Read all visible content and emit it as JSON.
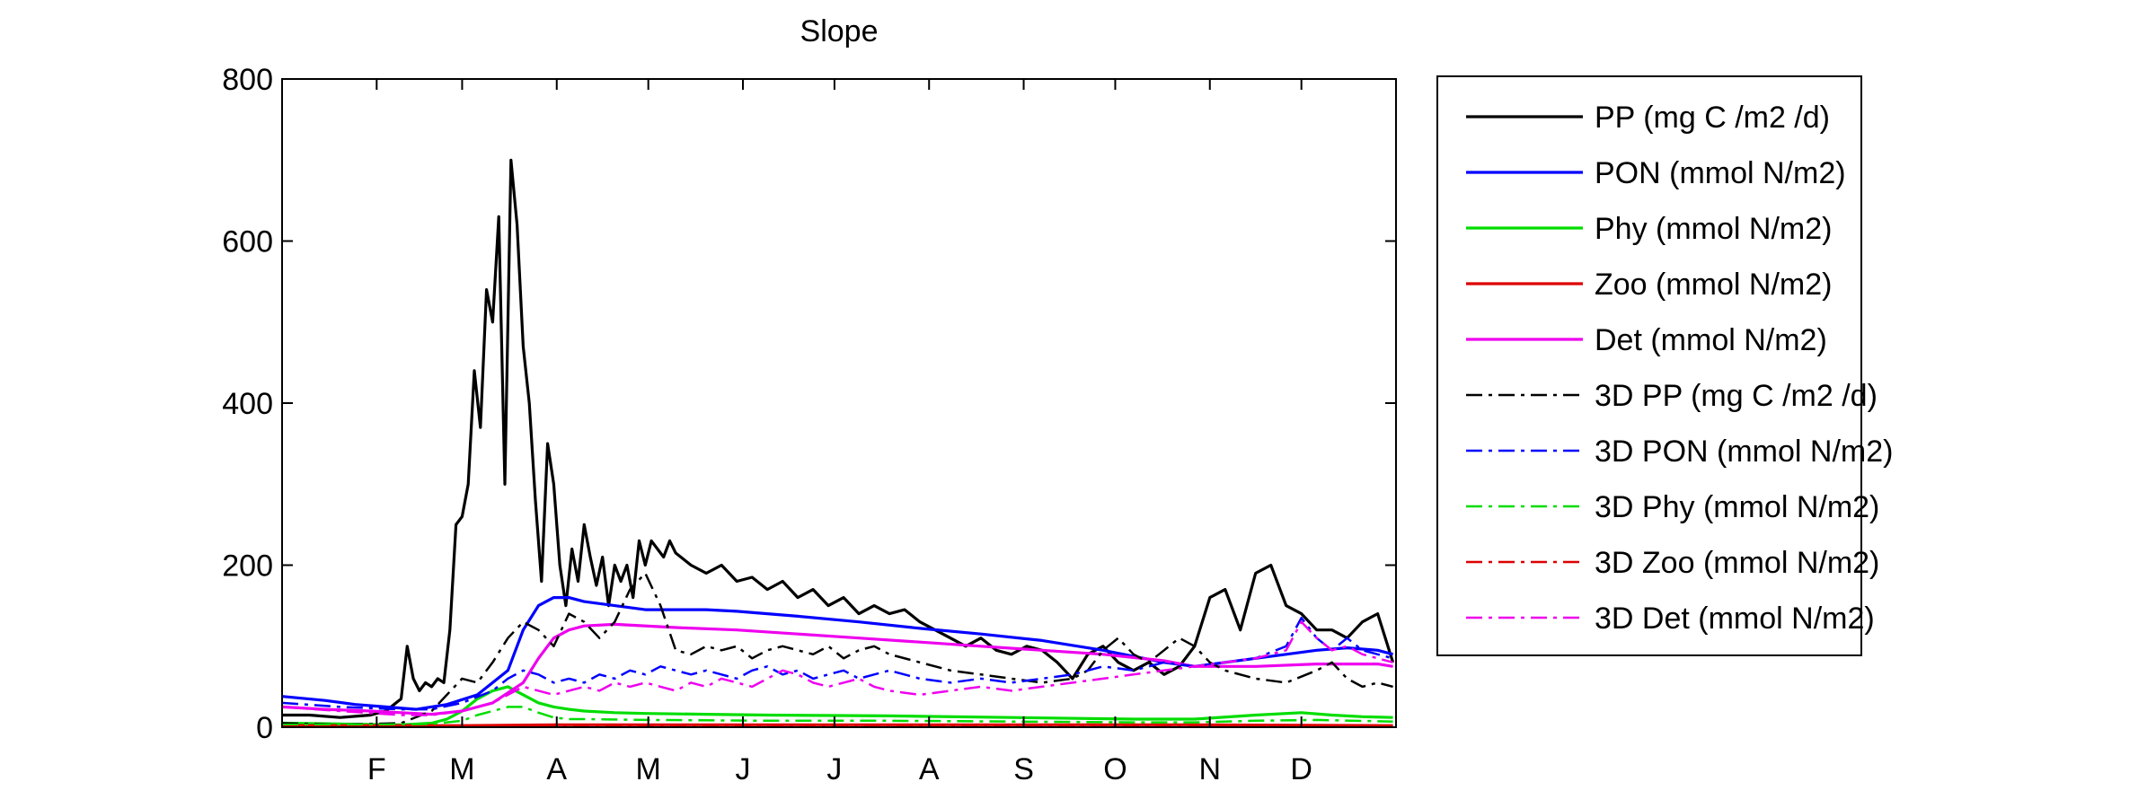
{
  "chart_data": {
    "type": "line",
    "title": "Slope",
    "xlabel": "",
    "ylabel": "",
    "xlim": [
      1,
      366
    ],
    "ylim": [
      0,
      800
    ],
    "yticks": [
      0,
      200,
      400,
      600,
      800
    ],
    "xticks": [
      {
        "label": "F",
        "day": 32
      },
      {
        "label": "M",
        "day": 60
      },
      {
        "label": "A",
        "day": 91
      },
      {
        "label": "M",
        "day": 121
      },
      {
        "label": "J",
        "day": 152
      },
      {
        "label": "J",
        "day": 182
      },
      {
        "label": "A",
        "day": 213
      },
      {
        "label": "S",
        "day": 244
      },
      {
        "label": "O",
        "day": 274
      },
      {
        "label": "N",
        "day": 305
      },
      {
        "label": "D",
        "day": 335
      }
    ],
    "grid": false,
    "legend_position": "outside-right",
    "series": [
      {
        "name": "PP (mg C /m2 /d)",
        "color": "#000000",
        "dash": "solid",
        "x": [
          1,
          10,
          20,
          30,
          35,
          40,
          42,
          44,
          46,
          48,
          50,
          52,
          54,
          56,
          58,
          60,
          62,
          64,
          66,
          68,
          70,
          72,
          74,
          76,
          78,
          80,
          82,
          84,
          86,
          88,
          90,
          92,
          94,
          96,
          98,
          100,
          102,
          104,
          106,
          108,
          110,
          112,
          114,
          116,
          118,
          120,
          122,
          124,
          126,
          128,
          130,
          135,
          140,
          145,
          150,
          155,
          160,
          165,
          170,
          175,
          180,
          185,
          190,
          195,
          200,
          205,
          210,
          215,
          220,
          225,
          230,
          235,
          240,
          245,
          250,
          255,
          260,
          265,
          270,
          275,
          280,
          285,
          290,
          295,
          300,
          305,
          310,
          315,
          320,
          325,
          330,
          335,
          340,
          345,
          350,
          355,
          360,
          365
        ],
        "y": [
          15,
          15,
          12,
          15,
          20,
          35,
          100,
          60,
          45,
          55,
          50,
          60,
          55,
          120,
          250,
          260,
          300,
          440,
          370,
          540,
          500,
          630,
          300,
          700,
          620,
          470,
          400,
          280,
          180,
          350,
          300,
          200,
          150,
          220,
          180,
          250,
          210,
          175,
          210,
          150,
          200,
          180,
          200,
          160,
          230,
          200,
          230,
          220,
          210,
          230,
          215,
          200,
          190,
          200,
          180,
          185,
          170,
          180,
          160,
          170,
          150,
          160,
          140,
          150,
          140,
          145,
          130,
          120,
          110,
          100,
          110,
          95,
          90,
          100,
          95,
          80,
          60,
          90,
          100,
          80,
          70,
          80,
          65,
          75,
          100,
          160,
          170,
          120,
          190,
          200,
          150,
          140,
          120,
          120,
          110,
          130,
          140,
          80
        ]
      },
      {
        "name": "PON (mmol N/m2)",
        "color": "#0000ff",
        "dash": "solid",
        "x": [
          1,
          15,
          25,
          35,
          45,
          55,
          65,
          75,
          80,
          85,
          90,
          95,
          100,
          110,
          120,
          130,
          140,
          150,
          170,
          190,
          210,
          230,
          250,
          270,
          290,
          300,
          320,
          340,
          350,
          360,
          365
        ],
        "y": [
          38,
          33,
          28,
          25,
          22,
          28,
          40,
          70,
          120,
          150,
          160,
          160,
          155,
          150,
          145,
          145,
          145,
          143,
          137,
          130,
          122,
          115,
          107,
          95,
          80,
          75,
          85,
          95,
          98,
          95,
          90
        ]
      },
      {
        "name": "Phy (mmol N/m2)",
        "color": "#00dd00",
        "dash": "solid",
        "x": [
          1,
          20,
          40,
          50,
          55,
          60,
          65,
          70,
          75,
          80,
          85,
          90,
          95,
          100,
          110,
          120,
          140,
          160,
          200,
          240,
          280,
          300,
          320,
          335,
          345,
          355,
          365
        ],
        "y": [
          5,
          4,
          3,
          5,
          10,
          20,
          35,
          45,
          50,
          40,
          30,
          25,
          22,
          20,
          18,
          17,
          16,
          15,
          14,
          12,
          10,
          10,
          15,
          18,
          15,
          13,
          12
        ]
      },
      {
        "name": "Zoo (mmol N/m2)",
        "color": "#dd0000",
        "dash": "solid",
        "x": [
          1,
          60,
          90,
          120,
          180,
          240,
          300,
          365
        ],
        "y": [
          2,
          2,
          3,
          3,
          3,
          3,
          3,
          2
        ]
      },
      {
        "name": "Det (mmol N/m2)",
        "color": "#ee00ee",
        "dash": "solid",
        "x": [
          1,
          15,
          30,
          40,
          50,
          60,
          70,
          80,
          85,
          90,
          95,
          100,
          110,
          130,
          150,
          170,
          190,
          210,
          230,
          250,
          270,
          290,
          300,
          320,
          340,
          360,
          365
        ],
        "y": [
          25,
          22,
          20,
          18,
          16,
          20,
          30,
          55,
          85,
          110,
          120,
          125,
          127,
          123,
          120,
          115,
          110,
          105,
          100,
          95,
          90,
          82,
          75,
          75,
          78,
          78,
          75
        ]
      },
      {
        "name": "3D PP (mg C /m2 /d)",
        "color": "#000000",
        "dash": "dashdot",
        "x": [
          1,
          20,
          40,
          50,
          55,
          60,
          65,
          70,
          75,
          80,
          85,
          90,
          95,
          100,
          105,
          110,
          115,
          120,
          125,
          130,
          135,
          140,
          145,
          150,
          155,
          160,
          165,
          170,
          175,
          180,
          185,
          190,
          195,
          200,
          210,
          220,
          230,
          240,
          250,
          260,
          265,
          270,
          275,
          280,
          285,
          290,
          295,
          300,
          305,
          310,
          320,
          330,
          340,
          345,
          350,
          355,
          360,
          365
        ],
        "y": [
          5,
          3,
          5,
          20,
          40,
          60,
          55,
          80,
          110,
          130,
          120,
          100,
          140,
          130,
          110,
          130,
          170,
          190,
          150,
          95,
          90,
          100,
          95,
          100,
          85,
          95,
          100,
          95,
          90,
          100,
          85,
          95,
          100,
          90,
          80,
          70,
          65,
          60,
          55,
          60,
          70,
          95,
          110,
          90,
          80,
          95,
          110,
          100,
          80,
          70,
          60,
          55,
          70,
          80,
          60,
          50,
          55,
          50
        ]
      },
      {
        "name": "3D PON (mmol N/m2)",
        "color": "#0000ff",
        "dash": "dashdot",
        "x": [
          1,
          20,
          40,
          50,
          60,
          70,
          75,
          80,
          85,
          90,
          95,
          100,
          105,
          110,
          115,
          120,
          125,
          130,
          135,
          140,
          145,
          150,
          155,
          160,
          165,
          170,
          175,
          180,
          185,
          190,
          195,
          200,
          210,
          220,
          230,
          240,
          250,
          260,
          270,
          280,
          290,
          300,
          310,
          320,
          330,
          335,
          340,
          345,
          350,
          355,
          360,
          365
        ],
        "y": [
          30,
          25,
          22,
          22,
          30,
          45,
          60,
          70,
          65,
          55,
          60,
          55,
          65,
          60,
          70,
          65,
          75,
          70,
          65,
          70,
          65,
          60,
          70,
          75,
          65,
          70,
          60,
          65,
          70,
          60,
          65,
          70,
          60,
          55,
          60,
          55,
          60,
          65,
          75,
          70,
          80,
          75,
          80,
          85,
          100,
          135,
          110,
          95,
          110,
          95,
          90,
          85
        ]
      },
      {
        "name": "3D Phy (mmol N/m2)",
        "color": "#00dd00",
        "dash": "dashdot",
        "x": [
          1,
          30,
          50,
          60,
          65,
          70,
          75,
          80,
          85,
          90,
          95,
          100,
          120,
          160,
          200,
          240,
          280,
          300,
          320,
          340,
          365
        ],
        "y": [
          3,
          3,
          4,
          8,
          15,
          20,
          25,
          25,
          18,
          12,
          10,
          10,
          9,
          8,
          8,
          7,
          6,
          6,
          8,
          9,
          7
        ]
      },
      {
        "name": "3D Zoo (mmol N/m2)",
        "color": "#dd0000",
        "dash": "dashdot",
        "x": [
          1,
          60,
          120,
          180,
          240,
          300,
          365
        ],
        "y": [
          1,
          1,
          2,
          2,
          2,
          2,
          1
        ]
      },
      {
        "name": "3D Det (mmol N/m2)",
        "color": "#ee00ee",
        "dash": "dashdot",
        "x": [
          1,
          20,
          40,
          50,
          60,
          70,
          75,
          80,
          85,
          90,
          95,
          100,
          105,
          110,
          115,
          120,
          125,
          130,
          135,
          140,
          145,
          150,
          155,
          160,
          165,
          170,
          175,
          180,
          185,
          190,
          195,
          200,
          210,
          220,
          230,
          240,
          250,
          260,
          270,
          280,
          290,
          300,
          310,
          320,
          330,
          335,
          340,
          345,
          350,
          355,
          360,
          365
        ],
        "y": [
          25,
          20,
          15,
          15,
          20,
          30,
          40,
          50,
          45,
          40,
          45,
          50,
          45,
          55,
          50,
          55,
          50,
          45,
          55,
          50,
          60,
          55,
          50,
          60,
          70,
          65,
          55,
          50,
          55,
          60,
          50,
          45,
          40,
          45,
          50,
          45,
          50,
          55,
          60,
          65,
          70,
          75,
          80,
          85,
          95,
          130,
          110,
          95,
          100,
          90,
          85,
          80
        ]
      }
    ]
  }
}
